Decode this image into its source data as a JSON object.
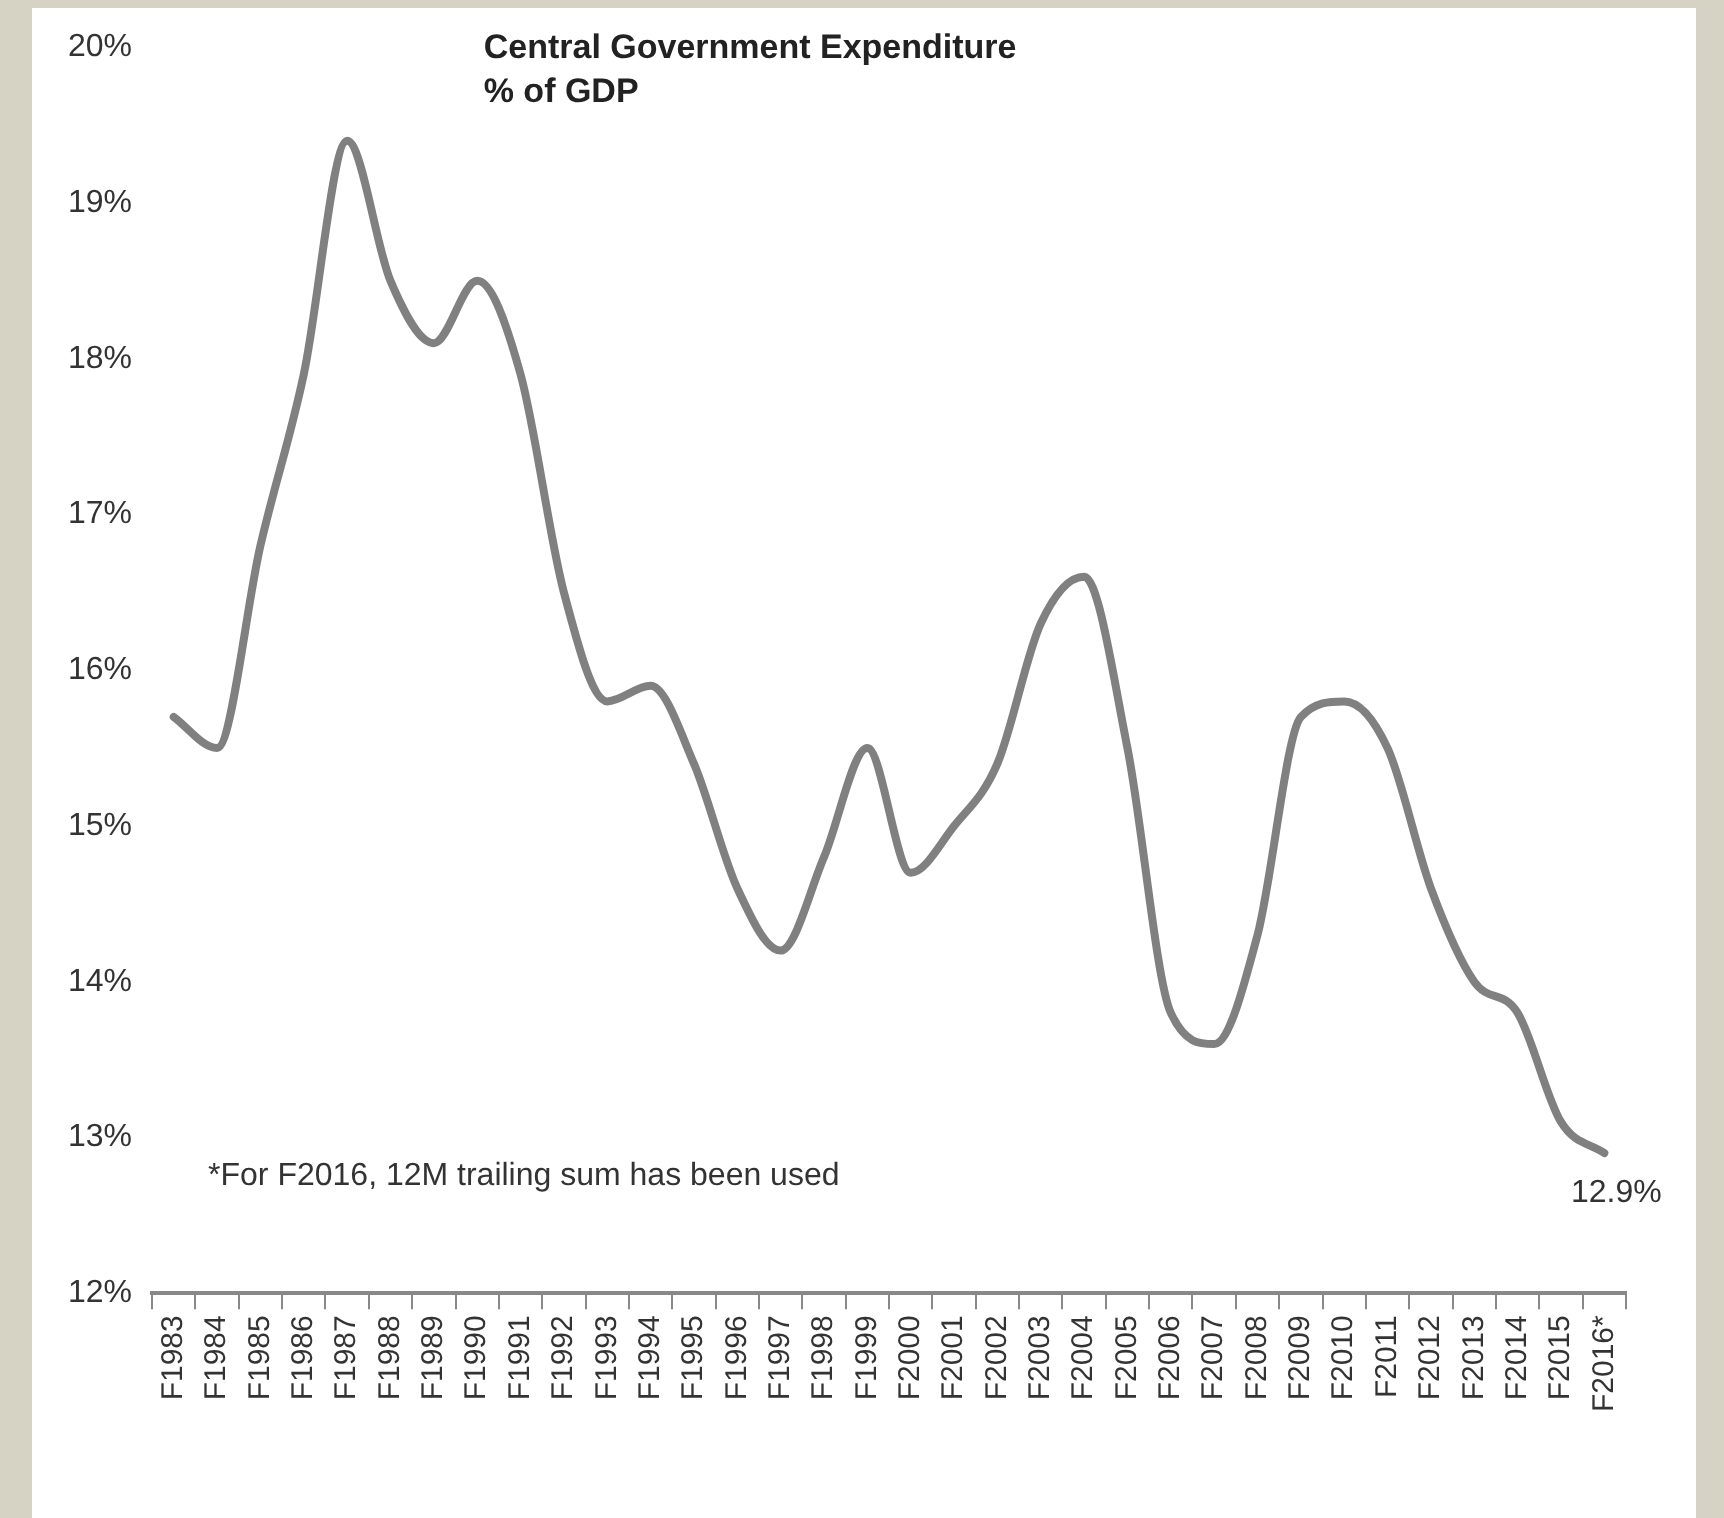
{
  "chart_data": {
    "type": "line",
    "title": "Central Government Expenditure",
    "subtitle": "% of GDP",
    "categories": [
      "F1983",
      "F1984",
      "F1985",
      "F1986",
      "F1987",
      "F1988",
      "F1989",
      "F1990",
      "F1991",
      "F1992",
      "F1993",
      "F1994",
      "F1995",
      "F1996",
      "F1997",
      "F1998",
      "F1999",
      "F2000",
      "F2001",
      "F2002",
      "F2003",
      "F2004",
      "F2005",
      "F2006",
      "F2007",
      "F2008",
      "F2009",
      "F2010",
      "F2011",
      "F2012",
      "F2013",
      "F2014",
      "F2015",
      "F2016*"
    ],
    "series": [
      {
        "color": "#808080",
        "values": [
          15.7,
          15.5,
          16.8,
          17.9,
          19.4,
          18.5,
          18.1,
          18.5,
          17.9,
          16.5,
          15.8,
          15.9,
          15.4,
          14.6,
          14.2,
          14.8,
          15.5,
          14.7,
          15.0,
          15.4,
          16.3,
          16.6,
          15.5,
          13.8,
          13.6,
          14.3,
          15.7,
          15.8,
          15.5,
          14.6,
          14.0,
          13.8,
          13.1,
          12.9
        ]
      }
    ],
    "ylim": [
      12,
      20
    ],
    "yticks": [
      {
        "value": 12,
        "label": "12%"
      },
      {
        "value": 13,
        "label": "13%"
      },
      {
        "value": 14,
        "label": "14%"
      },
      {
        "value": 15,
        "label": "15%"
      },
      {
        "value": 16,
        "label": "16%"
      },
      {
        "value": 17,
        "label": "17%"
      },
      {
        "value": 18,
        "label": "18%"
      },
      {
        "value": 19,
        "label": "19%"
      },
      {
        "value": 20,
        "label": "20%"
      }
    ],
    "annotations": [
      "*For F2016, 12M trailing sum has been used",
      {
        "text": "12.9%",
        "x": "F2016*",
        "y": 12.9
      }
    ],
    "grid": false,
    "legend": false,
    "marker": "none",
    "line_style": "solid"
  }
}
